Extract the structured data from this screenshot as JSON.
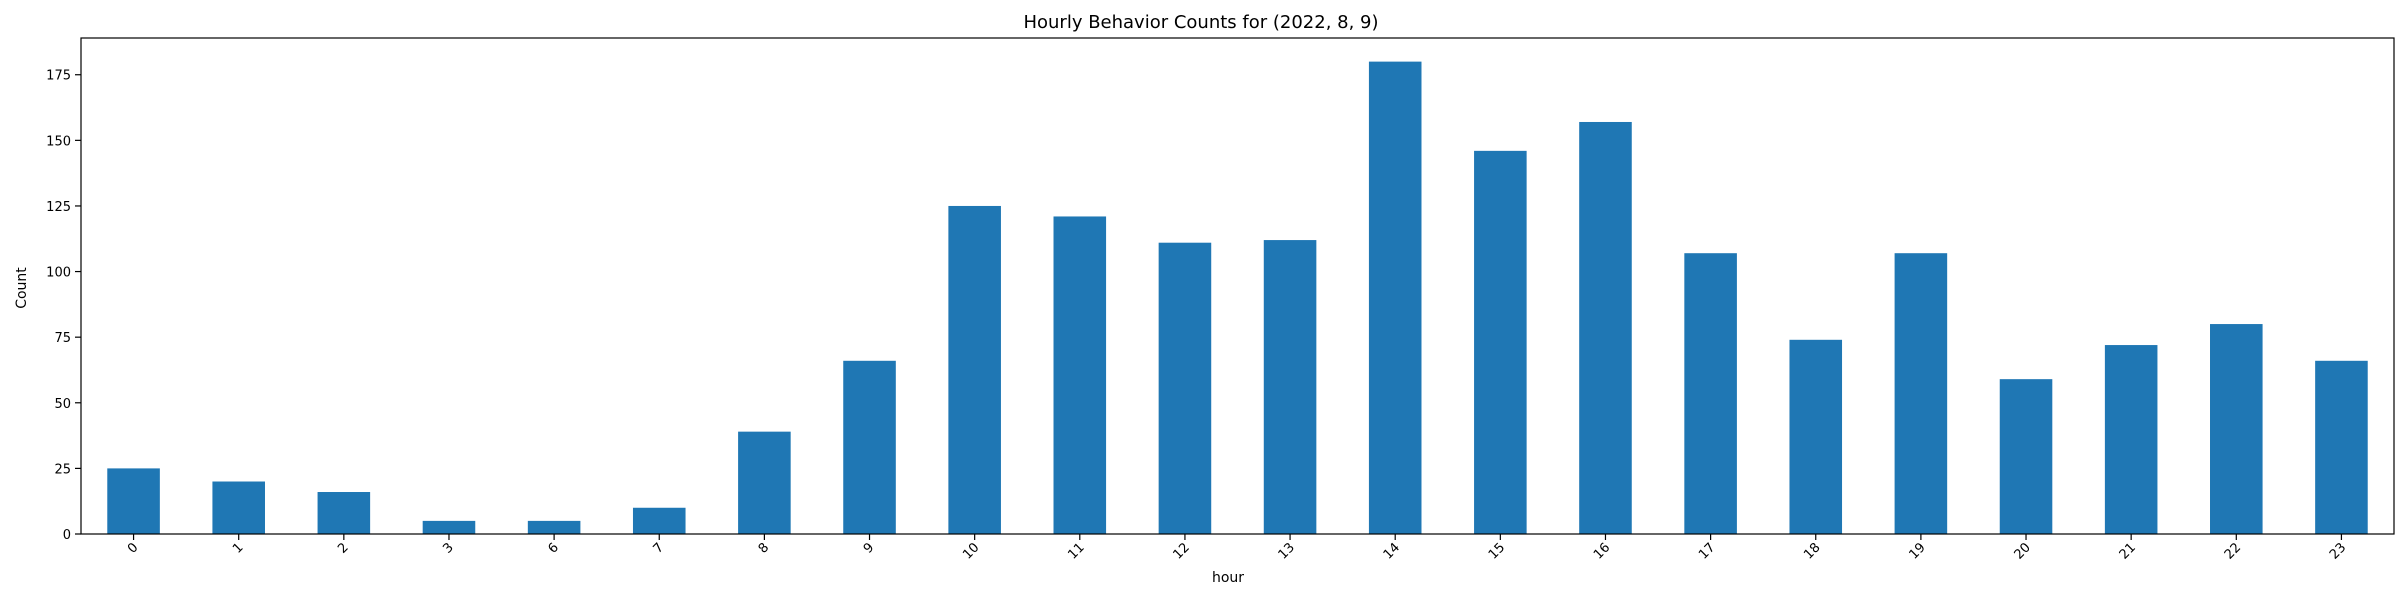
{
  "chart_data": {
    "type": "bar",
    "title": "Hourly Behavior Counts for (2022, 8, 9)",
    "xlabel": "hour",
    "ylabel": "Count",
    "categories": [
      "0",
      "1",
      "2",
      "3",
      "6",
      "7",
      "8",
      "9",
      "10",
      "11",
      "12",
      "13",
      "14",
      "15",
      "16",
      "17",
      "18",
      "19",
      "20",
      "21",
      "22",
      "23"
    ],
    "series": [
      {
        "values": [
          25,
          20,
          16,
          5,
          5,
          10,
          39,
          66,
          125,
          121,
          111,
          112,
          180,
          146,
          157,
          107,
          74,
          107,
          59,
          72,
          80,
          66
        ]
      }
    ],
    "ylim": [
      0,
      189
    ],
    "yticks": [
      0,
      25,
      50,
      75,
      100,
      125,
      150,
      175
    ],
    "grid": false,
    "legend": "none",
    "bar_color": "#1f77b4",
    "x_tick_rotation_deg": 45
  }
}
